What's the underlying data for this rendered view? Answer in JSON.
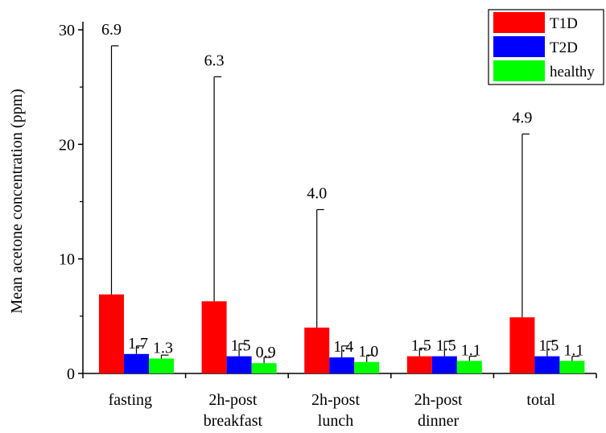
{
  "chart_data": {
    "type": "bar",
    "ylabel": "Mean acetone concentration (ppm)",
    "xlabel": "",
    "ylim": [
      0,
      30
    ],
    "yticks": [
      0,
      10,
      20,
      30
    ],
    "categories": [
      [
        "fasting"
      ],
      [
        "2h-post",
        "breakfast"
      ],
      [
        "2h-post",
        "lunch"
      ],
      [
        "2h-post",
        "dinner"
      ],
      [
        "total"
      ]
    ],
    "series": [
      {
        "name": "T1D",
        "color": "#ff0000",
        "values": [
          6.9,
          6.3,
          4.0,
          1.5,
          4.9
        ],
        "labels": [
          "6.9",
          "6.3",
          "4.0",
          "1.5",
          "4.9"
        ],
        "error_upper": [
          28.6,
          25.9,
          14.3,
          2.2,
          20.9
        ]
      },
      {
        "name": "T2D",
        "color": "#0000ff",
        "values": [
          1.7,
          1.5,
          1.4,
          1.5,
          1.5
        ],
        "labels": [
          "1.7",
          "1.5",
          "1.4",
          "1.5",
          "1.5"
        ],
        "error_upper": [
          2.4,
          2.6,
          2.4,
          2.8,
          2.8
        ]
      },
      {
        "name": "healthy",
        "color": "#00ff00",
        "values": [
          1.3,
          0.9,
          1.0,
          1.1,
          1.1
        ],
        "labels": [
          "1.3",
          "0.9",
          "1.0",
          "1.1",
          "1.1"
        ],
        "error_upper": [
          1.6,
          1.4,
          1.6,
          1.5,
          1.5
        ]
      }
    ],
    "legend_position": "top-right"
  }
}
